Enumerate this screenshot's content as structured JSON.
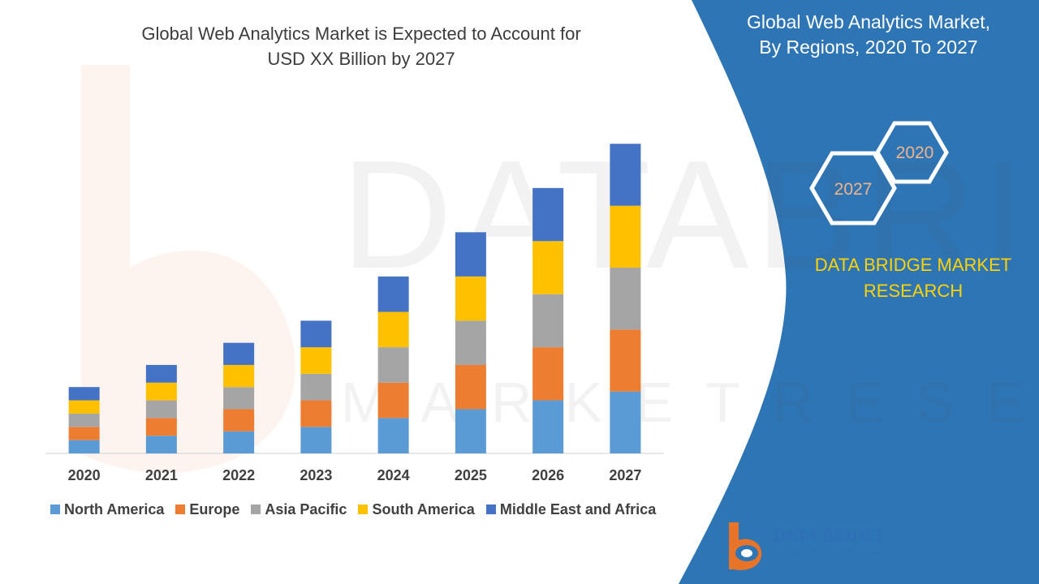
{
  "chart_data": {
    "type": "bar",
    "stacked": true,
    "title_lines": [
      "Global Web Analytics Market is Expected to Account for",
      "USD XX Billion by 2027"
    ],
    "categories": [
      "2020",
      "2021",
      "2022",
      "2023",
      "2024",
      "2025",
      "2026",
      "2027"
    ],
    "series": [
      {
        "name": "North America",
        "color": "#5b9bd5",
        "values": [
          3.0,
          4.0,
          5.0,
          6.0,
          8.0,
          10.0,
          12.0,
          14.0
        ]
      },
      {
        "name": "Europe",
        "color": "#ed7d31",
        "values": [
          3.0,
          4.0,
          5.0,
          6.0,
          8.0,
          10.0,
          12.0,
          14.0
        ]
      },
      {
        "name": "Asia Pacific",
        "color": "#a5a5a5",
        "values": [
          3.0,
          4.0,
          5.0,
          6.0,
          8.0,
          10.0,
          12.0,
          14.0
        ]
      },
      {
        "name": "South America",
        "color": "#ffc000",
        "values": [
          3.0,
          4.0,
          5.0,
          6.0,
          8.0,
          10.0,
          12.0,
          14.0
        ]
      },
      {
        "name": "Middle East and Africa",
        "color": "#4472c4",
        "values": [
          3.0,
          4.0,
          5.0,
          6.0,
          8.0,
          10.0,
          12.0,
          14.0
        ]
      }
    ],
    "ylim": [
      0,
      75
    ],
    "grid": false,
    "legend_position": "bottom",
    "xlabel": "",
    "ylabel": ""
  },
  "panel": {
    "title_lines": [
      "Global Web Analytics Market,",
      "By Regions, 2020 To 2027"
    ],
    "hex_start_label": "2020",
    "hex_end_label": "2027",
    "brand_lines": [
      "DATA BRIDGE MARKET",
      "RESEARCH"
    ],
    "background_color": "#2e75b6",
    "accent_color": "#ffd200"
  },
  "footer_logo": {
    "name": "DATA BRIDGE",
    "tagline": "MARKET RESEARCH"
  }
}
